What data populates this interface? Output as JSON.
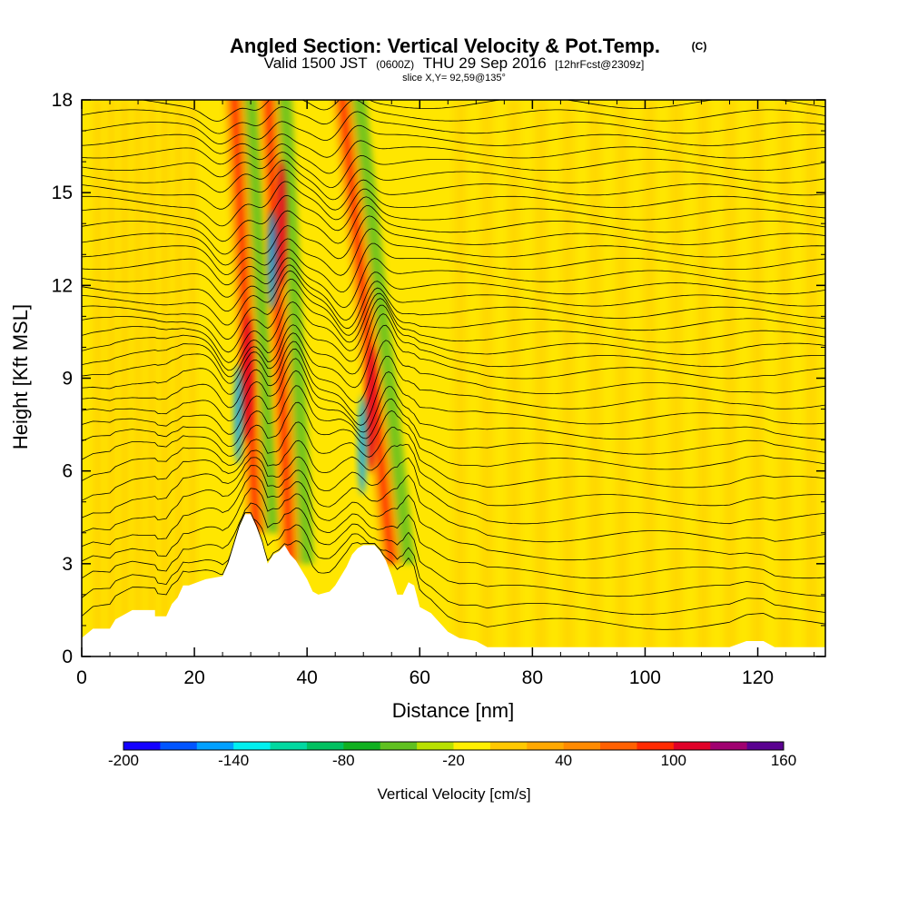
{
  "chart_data": {
    "type": "heatmap",
    "title": "Angled Section: Vertical Velocity & Pot.Temp.",
    "title_unit": "(C)",
    "subtitle_valid": "Valid 1500 JST",
    "subtitle_utc": "(0600Z)",
    "subtitle_date": "THU 29 Sep 2016",
    "subtitle_fcst": "[12hrFcst@2309z]",
    "slice_text": "slice X,Y= 92,59@135°",
    "xlabel": "Distance [nm]",
    "ylabel": "Height [Kft MSL]",
    "xlim": [
      0,
      132
    ],
    "ylim": [
      0,
      18
    ],
    "x_ticks": [
      "0",
      "20",
      "40",
      "60",
      "80",
      "100",
      "120"
    ],
    "y_ticks": [
      "0",
      "3",
      "6",
      "9",
      "12",
      "15",
      "18"
    ],
    "colorbar": {
      "label": "Vertical Velocity [cm/s]",
      "range": [
        -200,
        160
      ],
      "tick_labels": [
        "-200",
        "-140",
        "-80",
        "-20",
        "40",
        "100",
        "160"
      ],
      "colors": [
        "#1400ff",
        "#0055ff",
        "#00a0ff",
        "#00f0f0",
        "#00d8a0",
        "#00c060",
        "#10b020",
        "#60c020",
        "#b8e000",
        "#ffee00",
        "#ffc800",
        "#ffa800",
        "#ff8a00",
        "#ff6000",
        "#ff2a00",
        "#e00028",
        "#a00070",
        "#5a0090"
      ]
    },
    "background_field": "#ffe600",
    "updraft_bands": [
      {
        "name": "band-a",
        "base_x": 31,
        "top_x": 27,
        "base_height": 5,
        "peak_height": 9
      },
      {
        "name": "band-b",
        "base_x": 37,
        "top_x": 33,
        "base_height": 4,
        "peak_height": 14
      },
      {
        "name": "band-c",
        "base_x": 55,
        "top_x": 46,
        "base_height": 4,
        "peak_height": 8
      }
    ],
    "terrain": [
      [
        0,
        0.6
      ],
      [
        2,
        0.9
      ],
      [
        5,
        0.9
      ],
      [
        6,
        1.2
      ],
      [
        9,
        1.5
      ],
      [
        13,
        1.5
      ],
      [
        13,
        1.3
      ],
      [
        15,
        1.3
      ],
      [
        16,
        1.7
      ],
      [
        17,
        1.9
      ],
      [
        18,
        2.3
      ],
      [
        19,
        2.3
      ],
      [
        22,
        2.5
      ],
      [
        25,
        2.6
      ],
      [
        25.5,
        2.8
      ],
      [
        26,
        3.0
      ],
      [
        27,
        3.6
      ],
      [
        28,
        4.2
      ],
      [
        29,
        4.6
      ],
      [
        30,
        4.6
      ],
      [
        31,
        4.2
      ],
      [
        32,
        3.7
      ],
      [
        33,
        3.0
      ],
      [
        34,
        3.3
      ],
      [
        35,
        3.4
      ],
      [
        36,
        3.6
      ],
      [
        37,
        3.3
      ],
      [
        38,
        3.1
      ],
      [
        39,
        2.8
      ],
      [
        40,
        2.5
      ],
      [
        41,
        2.1
      ],
      [
        42,
        2.0
      ],
      [
        44,
        2.1
      ],
      [
        45,
        2.3
      ],
      [
        46,
        2.6
      ],
      [
        47,
        2.9
      ],
      [
        48,
        3.3
      ],
      [
        49,
        3.5
      ],
      [
        50,
        3.6
      ],
      [
        52,
        3.6
      ],
      [
        53,
        3.4
      ],
      [
        54,
        3.1
      ],
      [
        55,
        2.6
      ],
      [
        56,
        2.0
      ],
      [
        57,
        2.0
      ],
      [
        58,
        2.4
      ],
      [
        59,
        2.3
      ],
      [
        60,
        1.6
      ],
      [
        62,
        1.4
      ],
      [
        63,
        1.2
      ],
      [
        64,
        1.0
      ],
      [
        65,
        0.8
      ],
      [
        67,
        0.6
      ],
      [
        70,
        0.5
      ],
      [
        72,
        0.3
      ],
      [
        75,
        0.3
      ],
      [
        80,
        0.3
      ],
      [
        90,
        0.3
      ],
      [
        100,
        0.3
      ],
      [
        110,
        0.3
      ],
      [
        115,
        0.3
      ],
      [
        118,
        0.5
      ],
      [
        121,
        0.5
      ],
      [
        123,
        0.3
      ],
      [
        132,
        0.3
      ]
    ],
    "contour_levels_height": [
      0.8,
      1.3,
      1.9,
      2.5,
      3.1,
      3.7,
      4.3,
      4.9,
      5.5,
      6.1,
      6.6,
      7.1,
      7.6,
      8.1,
      8.6,
      9.1,
      9.5,
      9.9,
      10.3,
      10.7,
      11.1,
      11.5,
      11.9,
      12.3,
      12.7,
      13.1,
      13.5,
      13.9,
      14.3,
      14.7,
      15.1,
      15.5,
      15.9,
      16.3,
      16.7,
      17.1,
      17.5,
      17.9
    ]
  }
}
